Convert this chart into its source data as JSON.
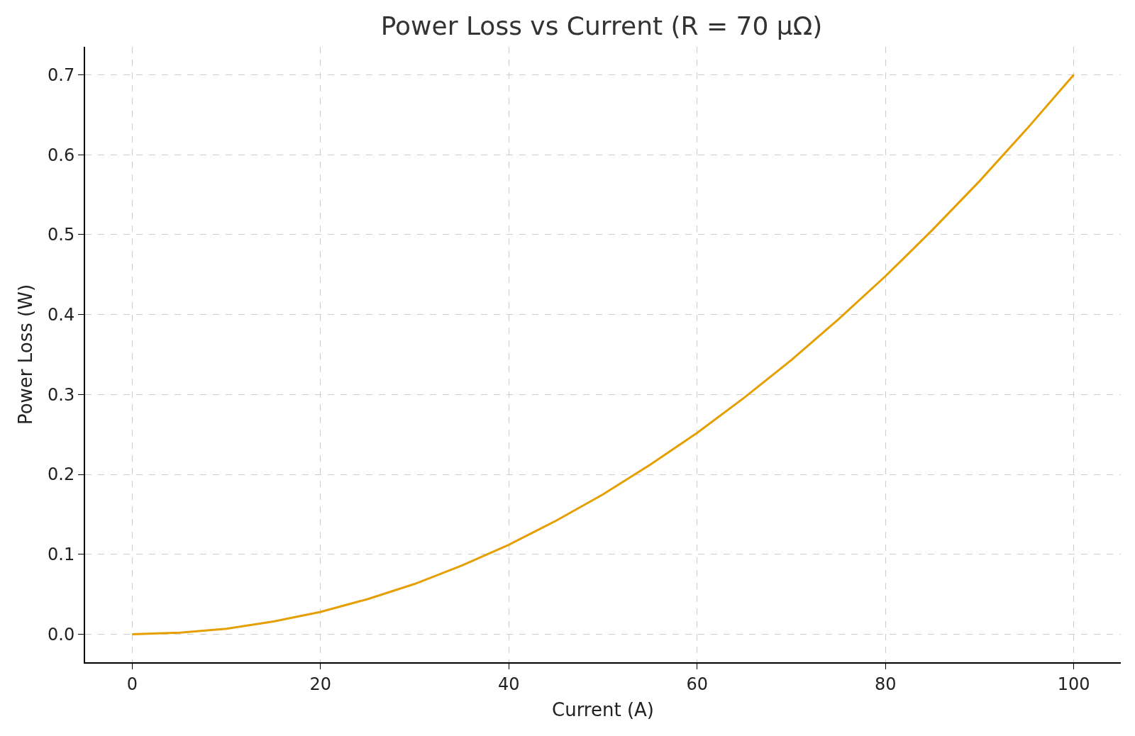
{
  "chart_data": {
    "type": "line",
    "title": "Power Loss vs Current (R = 70 μΩ)",
    "xlabel": "Current (A)",
    "ylabel": "Power Loss (W)",
    "x": [
      0,
      5,
      10,
      15,
      20,
      25,
      30,
      35,
      40,
      45,
      50,
      55,
      60,
      65,
      70,
      75,
      80,
      85,
      90,
      95,
      100
    ],
    "series": [
      {
        "color": "#e69f00",
        "values": [
          0,
          0.002,
          0.007,
          0.016,
          0.028,
          0.044,
          0.063,
          0.086,
          0.112,
          0.142,
          0.175,
          0.212,
          0.252,
          0.296,
          0.343,
          0.394,
          0.448,
          0.506,
          0.567,
          0.632,
          0.7
        ]
      }
    ],
    "xlim": [
      -5,
      105
    ],
    "xticks": [
      0,
      20,
      40,
      60,
      80,
      100
    ],
    "ylim": [
      -0.035,
      0.735
    ],
    "yticks": [
      {
        "value": 0,
        "label": "0.0"
      },
      0.1,
      0.2,
      0.3,
      0.4,
      0.5,
      0.6,
      0.7
    ],
    "grid": true,
    "marker": "none",
    "line_style": "solid"
  }
}
